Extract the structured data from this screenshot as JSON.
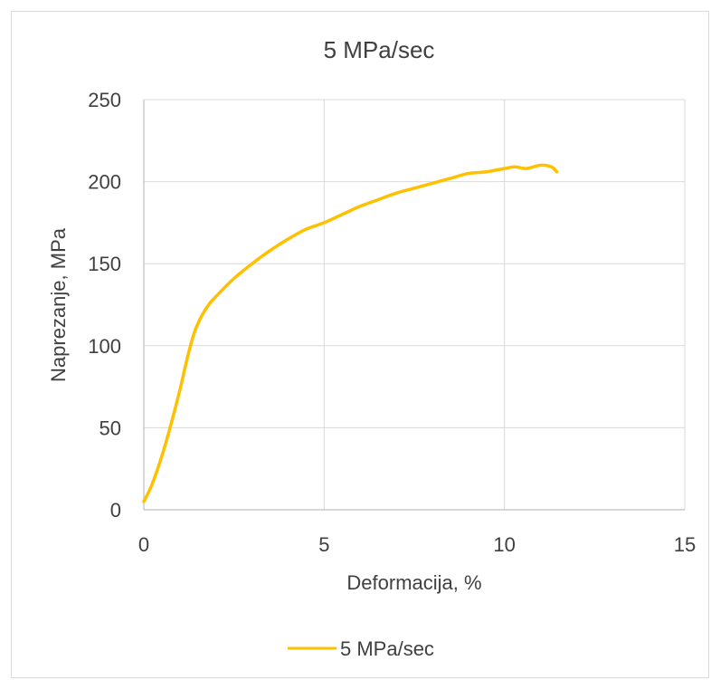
{
  "chart_data": {
    "type": "line",
    "title": "5 MPa/sec",
    "xlabel": "Deformacija, %",
    "ylabel": "Naprezanje, MPa",
    "xlim": [
      0,
      15
    ],
    "ylim": [
      0,
      250
    ],
    "x_ticks": [
      "0",
      "5",
      "10",
      "15"
    ],
    "y_ticks": [
      "0",
      "50",
      "100",
      "150",
      "200",
      "250"
    ],
    "grid": true,
    "legend_position": "bottom",
    "series": [
      {
        "name": "5 MPa/sec",
        "color": "#FFC000",
        "x": [
          0,
          0.2,
          0.4,
          0.6,
          0.8,
          1.0,
          1.2,
          1.4,
          1.6,
          1.8,
          2.0,
          2.5,
          3.0,
          3.5,
          4.0,
          4.5,
          5.0,
          5.5,
          6.0,
          6.5,
          7.0,
          7.5,
          8.0,
          8.5,
          9.0,
          9.5,
          10.0,
          10.3,
          10.6,
          11.0,
          11.3,
          11.45
        ],
        "y": [
          5,
          14,
          26,
          40,
          56,
          73,
          92,
          108,
          118,
          125,
          130,
          141,
          150,
          158,
          165,
          171,
          175,
          180,
          185,
          189,
          193,
          196,
          199,
          202,
          205,
          206,
          208,
          209,
          208,
          210,
          209,
          206
        ]
      }
    ]
  }
}
